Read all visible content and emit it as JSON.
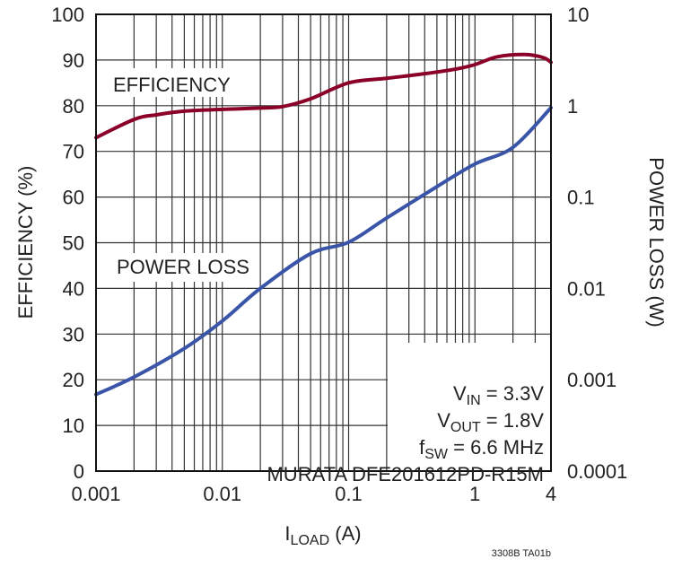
{
  "chart_data": {
    "type": "line",
    "xlabel": "I",
    "xlabel_sub": "LOAD",
    "xlabel_unit": " (A)",
    "ylabel": "EFFICIENCY (%)",
    "y2label": "POWER LOSS (W)",
    "x_scale": "log",
    "xlim": [
      0.001,
      4
    ],
    "ylim": [
      0,
      100
    ],
    "y2_scale": "log",
    "y2lim": [
      0.0001,
      10
    ],
    "grid": true,
    "x_ticks": [
      "0.001",
      "0.01",
      "0.1",
      "1",
      "4"
    ],
    "y_ticks": [
      "0",
      "10",
      "20",
      "30",
      "40",
      "50",
      "60",
      "70",
      "80",
      "90",
      "100"
    ],
    "y2_ticks": [
      "0.0001",
      "0.001",
      "0.01",
      "0.1",
      "1",
      "10"
    ],
    "series": [
      {
        "name": "EFFICIENCY",
        "axis": "left",
        "color": "#8b0028",
        "x": [
          0.001,
          0.002,
          0.003,
          0.005,
          0.01,
          0.02,
          0.03,
          0.05,
          0.1,
          0.2,
          0.4,
          0.7,
          1,
          1.5,
          2.5,
          3.5,
          4
        ],
        "y": [
          73,
          77,
          78,
          78.8,
          79.2,
          79.5,
          79.8,
          81.5,
          85,
          86,
          87,
          88,
          89,
          90.7,
          91.2,
          90.5,
          89.5
        ]
      },
      {
        "name": "POWER LOSS",
        "axis": "right",
        "color": "#3a55a8",
        "x": [
          0.001,
          0.002,
          0.005,
          0.01,
          0.02,
          0.05,
          0.1,
          0.2,
          0.5,
          1,
          2,
          4
        ],
        "y": [
          0.00069,
          0.00107,
          0.0022,
          0.0044,
          0.01,
          0.024,
          0.032,
          0.059,
          0.13,
          0.23,
          0.35,
          0.95
        ]
      }
    ],
    "annotations": {
      "vin": {
        "main": "V",
        "sub": "IN",
        "rest": " = 3.3V"
      },
      "vout": {
        "main": "V",
        "sub": "OUT",
        "rest": " = 1.8V"
      },
      "fsw": {
        "main": "f",
        "sub": "SW",
        "rest": " = 6.6 MHz"
      },
      "inductor": "MURATA DFE201612PD-R15M"
    },
    "footnote": "3308B TA01b"
  }
}
